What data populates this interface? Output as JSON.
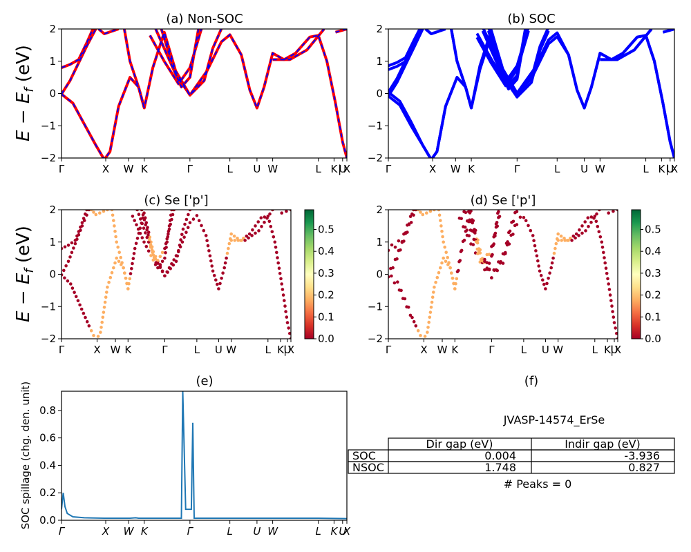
{
  "figure_title": "",
  "chart_data": [
    {
      "panel": "a",
      "type": "line",
      "title": "(a) Non-SOC",
      "ylabel": "E − E_f (eV)",
      "ylim": [
        -2,
        2
      ],
      "yticks": [
        -2,
        -1,
        0,
        1,
        2
      ],
      "kticks": [
        {
          "x": 0.0,
          "label": "Γ"
        },
        {
          "x": 0.155,
          "label": "X"
        },
        {
          "x": 0.235,
          "label": "W"
        },
        {
          "x": 0.29,
          "label": "K"
        },
        {
          "x": 0.45,
          "label": "Γ"
        },
        {
          "x": 0.59,
          "label": "L"
        },
        {
          "x": 0.685,
          "label": "U"
        },
        {
          "x": 0.74,
          "label": "W"
        },
        {
          "x": 0.9,
          "label": "L"
        },
        {
          "x": 0.955,
          "label": "K"
        },
        {
          "x": 0.975,
          "label": "|"
        },
        {
          "x": 0.985,
          "label": "U"
        },
        {
          "x": 1.0,
          "label": "X"
        }
      ],
      "series": [
        {
          "color": "#ff0000",
          "style": "solid",
          "bands": [
            [
              [
                0,
                -0.02
              ],
              [
                0.04,
                -0.3
              ],
              [
                0.08,
                -0.95
              ],
              [
                0.12,
                -1.6
              ],
              [
                0.15,
                -2.05
              ],
              [
                0.17,
                -1.8
              ],
              [
                0.2,
                -0.4
              ],
              [
                0.24,
                0.5
              ],
              [
                0.27,
                0.2
              ],
              [
                0.29,
                -0.45
              ],
              [
                0.32,
                0.8
              ],
              [
                0.36,
                1.9
              ],
              [
                0.4,
                0.7
              ],
              [
                0.45,
                -0.05
              ],
              [
                0.51,
                0.7
              ],
              [
                0.56,
                1.6
              ],
              [
                0.59,
                1.82
              ],
              [
                0.63,
                1.2
              ],
              [
                0.66,
                0.1
              ],
              [
                0.685,
                -0.45
              ],
              [
                0.71,
                0.2
              ],
              [
                0.74,
                1.25
              ],
              [
                0.78,
                1.05
              ],
              [
                0.82,
                1.25
              ],
              [
                0.87,
                1.75
              ],
              [
                0.9,
                1.8
              ],
              [
                0.93,
                1.0
              ],
              [
                0.96,
                -0.3
              ],
              [
                0.985,
                -1.5
              ],
              [
                1.0,
                -2.0
              ]
            ],
            [
              [
                0,
                -0.02
              ],
              [
                0.03,
                0.4
              ],
              [
                0.06,
                0.95
              ],
              [
                0.09,
                1.5
              ],
              [
                0.12,
                2.0
              ]
            ],
            [
              [
                0,
                0.8
              ],
              [
                0.03,
                0.9
              ],
              [
                0.06,
                1.05
              ],
              [
                0.09,
                1.6
              ],
              [
                0.11,
                2.0
              ]
            ],
            [
              [
                0.13,
                2.0
              ],
              [
                0.15,
                1.85
              ],
              [
                0.2,
                2.0
              ]
            ],
            [
              [
                0.22,
                2.0
              ],
              [
                0.24,
                1.0
              ],
              [
                0.27,
                0.2
              ],
              [
                0.29,
                -0.45
              ]
            ],
            [
              [
                0.31,
                1.8
              ],
              [
                0.36,
                1.0
              ],
              [
                0.41,
                0.3
              ],
              [
                0.45,
                0.8
              ],
              [
                0.49,
                2.0
              ]
            ],
            [
              [
                0.33,
                2.0
              ],
              [
                0.38,
                1.0
              ],
              [
                0.42,
                0.2
              ],
              [
                0.45,
                0.5
              ],
              [
                0.48,
                2.0
              ]
            ],
            [
              [
                0.35,
                2.0
              ],
              [
                0.4,
                0.6
              ],
              [
                0.45,
                -0.05
              ],
              [
                0.5,
                0.4
              ],
              [
                0.53,
                1.4
              ],
              [
                0.56,
                2.0
              ]
            ],
            [
              [
                0.74,
                1.05
              ],
              [
                0.8,
                1.05
              ],
              [
                0.86,
                1.35
              ],
              [
                0.92,
                2.0
              ]
            ],
            [
              [
                0.96,
                1.9
              ],
              [
                1.0,
                2.0
              ]
            ]
          ]
        },
        {
          "color": "#0000ff",
          "style": "dashed",
          "bands": "same as red bands"
        }
      ]
    },
    {
      "panel": "b",
      "type": "line",
      "title": "(b) SOC",
      "ylim": [
        -2,
        2
      ],
      "yticks": [
        -2,
        -1,
        0,
        1,
        2
      ],
      "series": [
        {
          "color": "#0000ff",
          "style": "solid"
        }
      ]
    },
    {
      "panel": "c",
      "type": "scatter",
      "title": "(c)  Se ['p']",
      "ylabel": "E − E_f (eV)",
      "ylim": [
        -2,
        2
      ],
      "colorbar": {
        "cmap": "RdYlGn",
        "ticks": [
          0.0,
          0.1,
          0.2,
          0.3,
          0.4,
          0.5
        ],
        "range": [
          0,
          0.59
        ]
      }
    },
    {
      "panel": "d",
      "type": "scatter",
      "title": "(d) Se ['p']",
      "ylim": [
        -2,
        2
      ],
      "colorbar": {
        "cmap": "RdYlGn",
        "ticks": [
          0.0,
          0.1,
          0.2,
          0.3,
          0.4,
          0.5
        ],
        "range": [
          0,
          0.59
        ]
      }
    },
    {
      "panel": "e",
      "type": "line",
      "title": "(e)",
      "ylabel": "SOC spillage (chg. den. unit)",
      "ylim": [
        0,
        0.94
      ],
      "yticks": [
        0.0,
        0.2,
        0.4,
        0.6,
        0.8
      ],
      "color": "#1f77b4",
      "kticks_italic": true,
      "points": [
        [
          0,
          0.08
        ],
        [
          0.006,
          0.2
        ],
        [
          0.012,
          0.1
        ],
        [
          0.02,
          0.05
        ],
        [
          0.04,
          0.025
        ],
        [
          0.08,
          0.018
        ],
        [
          0.15,
          0.015
        ],
        [
          0.24,
          0.015
        ],
        [
          0.26,
          0.018
        ],
        [
          0.27,
          0.015
        ],
        [
          0.3,
          0.015
        ],
        [
          0.4,
          0.015
        ],
        [
          0.42,
          0.015
        ],
        [
          0.425,
          0.94
        ],
        [
          0.435,
          0.08
        ],
        [
          0.455,
          0.08
        ],
        [
          0.46,
          0.71
        ],
        [
          0.465,
          0.015
        ],
        [
          0.6,
          0.015
        ],
        [
          0.7,
          0.015
        ],
        [
          0.9,
          0.015
        ],
        [
          1.0,
          0.012
        ]
      ]
    }
  ],
  "panel_f": {
    "title": "(f)",
    "id_label": "JVASP-14574_ErSe",
    "table": {
      "col_headers": [
        "Dir gap (eV)",
        "Indir gap (eV)"
      ],
      "rows": [
        {
          "label": "SOC",
          "dir": "0.004",
          "indir": "-3.936"
        },
        {
          "label": "NSOC",
          "dir": "1.748",
          "indir": "0.827"
        }
      ]
    },
    "peaks": "# Peaks = 0"
  }
}
